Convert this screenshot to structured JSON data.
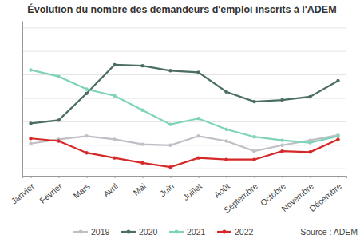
{
  "chart_data": {
    "type": "line",
    "title": "Évolution du nombre des demandeurs d'emploi inscrits à l'ADEM",
    "source": "Source : ADEM",
    "categories": [
      "Janvier",
      "Février",
      "Mars",
      "Avril",
      "Mai",
      "Juin",
      "Juillet",
      "Août",
      "Septembre",
      "Octobre",
      "Novembre",
      "Décembre"
    ],
    "series": [
      {
        "name": "2019",
        "color": "#bfbfc6",
        "values": [
          15070,
          15250,
          15390,
          15250,
          15040,
          15000,
          15390,
          15180,
          14750,
          15000,
          15210,
          15430
        ]
      },
      {
        "name": "2020",
        "color": "#4b6e63",
        "values": [
          15930,
          16070,
          17210,
          18430,
          18390,
          18180,
          18110,
          17280,
          16860,
          16930,
          17070,
          17750
        ]
      },
      {
        "name": "2021",
        "color": "#7fd3b8",
        "values": [
          18210,
          17930,
          17390,
          17110,
          16500,
          15890,
          16140,
          15680,
          15360,
          15210,
          15110,
          15390
        ]
      },
      {
        "name": "2022",
        "color": "#d62828",
        "values": [
          15290,
          15180,
          14680,
          14460,
          14250,
          14070,
          14460,
          14390,
          14390,
          14750,
          14710,
          15250
        ]
      }
    ],
    "ylim": [
      13700,
      20300
    ],
    "yticks": [
      14000,
      15000,
      16000,
      17000,
      18000,
      19000,
      20000
    ],
    "grid": true,
    "tick_labels": "x",
    "marker": "circle",
    "legend": "bottom"
  }
}
